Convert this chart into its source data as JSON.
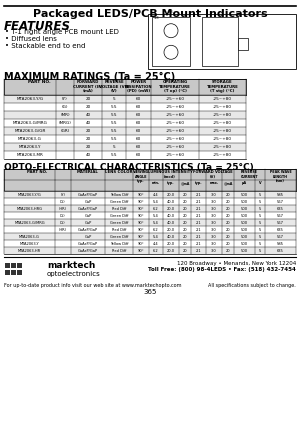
{
  "title": "Packaged LEDS/PCB Mount Indicators",
  "features_title": "FEATURES",
  "features": [
    "• T-1 right angle PCB mount LED",
    "• Diffused lens",
    "• Stackable end to end"
  ],
  "max_ratings_title": "MAXIMUM RATINGS (Ta = 25°C)",
  "opto_title": "OPTO-ELECTRICAL CHARACTERISTICS (Ta = 25°C)",
  "max_ratings_col_headers": [
    "PART NO.",
    "FORWARD\nCURRENT (IF)\n(mA)",
    "REVERSE\nVOLTAGE (VR)\n(V)",
    "POWER\nDISSIPATION (PD)\n(mW)",
    "OPERATING\nTEMPERATURE (T op)\n(°C)",
    "STORAGE\nTEMPERATURE (T stg)\n(°C)"
  ],
  "mr_rows": [
    [
      "MTA2063-Y/G",
      "(Y)",
      "20",
      "5",
      "60",
      "-25~+60",
      "-25~+80"
    ],
    [
      "",
      "(G)",
      "20",
      "5.5",
      "60",
      "-25~+60",
      "-25~+80"
    ],
    [
      "",
      "(MR)",
      "40",
      "5.5",
      "60",
      "-25~+60",
      "-25~+80"
    ],
    [
      "MTA2063-G/MRG",
      "(MRG)",
      "40",
      "5.5",
      "60",
      "-25~+60",
      "-25~+80"
    ],
    [
      "MTA2063-G/GR",
      "(GR)",
      "20",
      "5.5",
      "60",
      "-25~+60",
      "-25~+80"
    ],
    [
      "MTA2063-G",
      "",
      "20",
      "5.5",
      "60",
      "-25~+60",
      "-25~+80"
    ],
    [
      "MTA2063-Y",
      "",
      "20",
      "5",
      "60",
      "-25~+60",
      "-25~+80"
    ],
    [
      "MTA2063-MR",
      "",
      "40",
      "5.5",
      "60",
      "-25~+60",
      "-25~+80"
    ]
  ],
  "opto_col_headers_row1": [
    "PART NO.",
    "MATERIAL",
    "LENS COLOR",
    "VIEWING\nANGLE\ntyp.",
    "LUMINOUS INTENSITY\n(mcd)",
    "",
    "",
    "FORWARD VOLTAGE\n(V)",
    "",
    "",
    "REVERSE\nCURRENT\n(uA)",
    "",
    "PEAK WAVE\nLENGTH\n(nm)"
  ],
  "opto_col_headers_row2": [
    "",
    "",
    "",
    "",
    "min.",
    "typ.",
    "@mA",
    "typ.",
    "max.",
    "@mA",
    "uA",
    "V",
    "nm"
  ],
  "oe_rows": [
    [
      "MTA2063-Y/G",
      "(Y)",
      "GaAsP/GaP",
      "Yellow Diff",
      "90°",
      "4.4",
      "20.0",
      "20",
      "2.1",
      "3.0",
      "20",
      "500",
      "5",
      "585"
    ],
    [
      "",
      "(G)",
      "GaP",
      "Green Diff",
      "90°",
      "5.4",
      "40.0",
      "20",
      "2.1",
      "3.0",
      "20",
      "500",
      "5",
      "567"
    ],
    [
      "MTA2063-HRG",
      "(HR)",
      "GaAsP/GaP",
      "Red Diff",
      "90°",
      "6.2",
      "20.0",
      "20",
      "2.1",
      "3.0",
      "20",
      "500",
      "5",
      "635"
    ],
    [
      "",
      "(G)",
      "GaP",
      "Green Diff",
      "90°",
      "5.4",
      "40.0",
      "20",
      "2.1",
      "3.0",
      "20",
      "500",
      "5",
      "567"
    ],
    [
      "MTA2063-G/MRG",
      "(G)",
      "GaP",
      "Green Diff",
      "90°",
      "5.4",
      "40.0",
      "20",
      "2.1",
      "3.0",
      "20",
      "500",
      "5",
      "567"
    ],
    [
      "",
      "(HR)",
      "GaAsP/GaP",
      "Red Diff",
      "90°",
      "6.2",
      "20.0",
      "20",
      "2.1",
      "3.0",
      "20",
      "500",
      "5",
      "635"
    ],
    [
      "MTA2063-G",
      "",
      "GaP",
      "Green Diff",
      "90°",
      "5.4",
      "40.0",
      "20",
      "2.1",
      "3.0",
      "20",
      "500",
      "5",
      "567"
    ],
    [
      "MTA2063-Y",
      "",
      "GaAsP/GaP",
      "Yellow Diff",
      "90°",
      "4.4",
      "20.0",
      "20",
      "2.1",
      "3.0",
      "20",
      "500",
      "5",
      "585"
    ],
    [
      "MTA2063-HR",
      "",
      "GaAsP/GaP",
      "Red Diff",
      "90°",
      "6.2",
      "20.0",
      "20",
      "2.1",
      "3.0",
      "20",
      "500",
      "5",
      "635"
    ]
  ],
  "footer_addr": "120 Broadway • Menands, New York 12204",
  "footer_phone": "Toll Free: (800) 98-4LEDS • Fax: (518) 432-7454",
  "footer_web": "For up-to-date product info visit our web site at www.marktechopto.com",
  "footer_note": "All specifications subject to change.",
  "page_num": "365",
  "bg_color": "#ffffff"
}
